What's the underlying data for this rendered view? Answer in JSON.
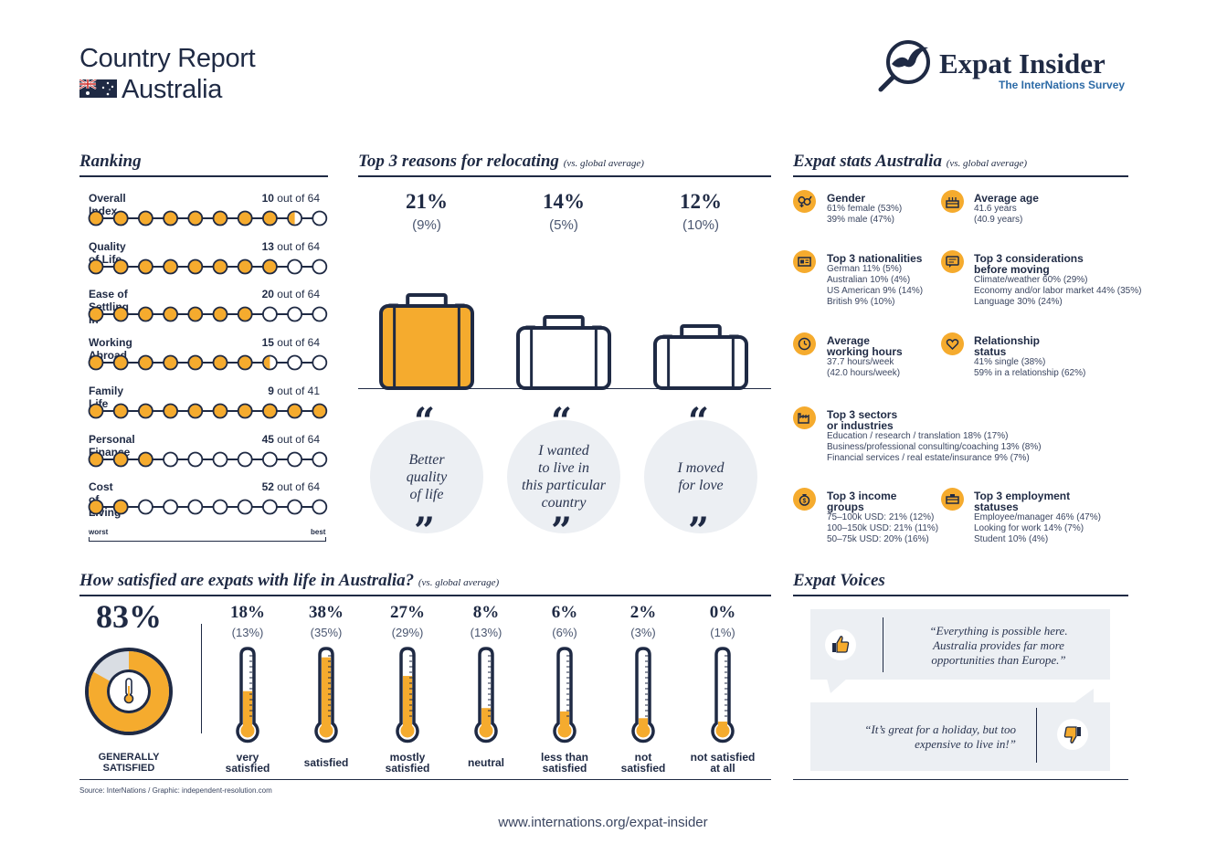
{
  "header": {
    "title": "Country Report",
    "country": "Australia",
    "logo_name": "Expat Insider",
    "logo_tagline": "The InterNations Survey"
  },
  "ranking": {
    "title": "Ranking",
    "scale_worst": "worst",
    "scale_best": "best",
    "of_label": "out of",
    "items": [
      {
        "label": "Overall Index",
        "rank": "10",
        "total": "64",
        "filled": 8.5
      },
      {
        "label": "Quality of Life",
        "rank": "13",
        "total": "64",
        "filled": 8
      },
      {
        "label": "Ease of Settling In",
        "rank": "20",
        "total": "64",
        "filled": 7
      },
      {
        "label": "Working Abroad",
        "rank": "15",
        "total": "64",
        "filled": 7.5
      },
      {
        "label": "Family Life",
        "rank": "9",
        "total": "41",
        "filled": 10
      },
      {
        "label": "Personal Finance",
        "rank": "45",
        "total": "64",
        "filled": 3
      },
      {
        "label": "Cost of Living",
        "rank": "52",
        "total": "64",
        "filled": 2
      }
    ]
  },
  "reasons": {
    "title": "Top 3 reasons for relocating",
    "subtitle": "(vs. global average)",
    "items": [
      {
        "pct": "21%",
        "global": "(9%)",
        "text": [
          "Better",
          "quality",
          "of life"
        ]
      },
      {
        "pct": "14%",
        "global": "(5%)",
        "text": [
          "I wanted",
          "to live in",
          "this particular",
          "country"
        ]
      },
      {
        "pct": "12%",
        "global": "(10%)",
        "text": [
          "I moved",
          "for love"
        ]
      }
    ]
  },
  "stats": {
    "title": "Expat stats Australia",
    "subtitle": "(vs. global average)",
    "gender": {
      "head": "Gender",
      "lines": [
        "61% female (53%)",
        "39% male (47%)"
      ],
      "icon": "gender-icon"
    },
    "age": {
      "head": "Average age",
      "lines": [
        "41.6 years",
        "(40.9 years)"
      ],
      "icon": "cake-icon"
    },
    "nationalities": {
      "head": "Top 3 nationalities",
      "lines": [
        "German 11% (5%)",
        "Australian 10% (4%)",
        "US American 9% (14%)",
        "British 9% (10%)"
      ],
      "icon": "passport-icon"
    },
    "considerations": {
      "head1": "Top 3 considerations",
      "head2": "before moving",
      "lines": [
        "Climate/weather 60% (29%)",
        "Economy and/or labor market 44% (35%)",
        "Language 30% (24%)"
      ],
      "icon": "chat-icon"
    },
    "hours": {
      "head1": "Average",
      "head2": "working hours",
      "lines": [
        "37.7 hours/week",
        "(42.0 hours/week)"
      ],
      "icon": "clock-icon"
    },
    "relationship": {
      "head1": "Relationship",
      "head2": "status",
      "lines": [
        "41% single (38%)",
        "59% in a relationship (62%)"
      ],
      "icon": "heart-icon"
    },
    "sectors": {
      "head1": "Top 3 sectors",
      "head2": "or industries",
      "lines": [
        "Education / research / translation 18% (17%)",
        "Business/professional consulting/coaching 13% (8%)",
        "Financial services / real estate/insurance 9% (7%)"
      ],
      "icon": "factory-icon"
    },
    "income": {
      "head1": "Top 3 income",
      "head2": "groups",
      "lines": [
        "75–100k USD: 21% (12%)",
        "100–150k USD: 21% (11%)",
        "50–75k USD: 20% (16%)"
      ],
      "icon": "money-bag-icon"
    },
    "employment": {
      "head1": "Top 3 employment",
      "head2": "statuses",
      "lines": [
        "Employee/manager 46% (47%)",
        "Looking for work 14% (7%)",
        "Student 10% (4%)"
      ],
      "icon": "desk-icon"
    }
  },
  "satisfaction": {
    "title": "How satisfied are expats with life in Australia?",
    "subtitle": "(vs. global average)",
    "overall_pct": "83%",
    "overall_value": 83,
    "overall_label": [
      "GENERALLY",
      "SATISFIED"
    ],
    "items": [
      {
        "pct": "18%",
        "global": "(13%)",
        "label": [
          "very",
          "satisfied"
        ],
        "value": 18
      },
      {
        "pct": "38%",
        "global": "(35%)",
        "label": [
          "satisfied"
        ],
        "value": 38
      },
      {
        "pct": "27%",
        "global": "(29%)",
        "label": [
          "mostly",
          "satisfied"
        ],
        "value": 27
      },
      {
        "pct": "8%",
        "global": "(13%)",
        "label": [
          "neutral"
        ],
        "value": 8
      },
      {
        "pct": "6%",
        "global": "(6%)",
        "label": [
          "less than",
          "satisfied"
        ],
        "value": 6
      },
      {
        "pct": "2%",
        "global": "(3%)",
        "label": [
          "not",
          "satisfied"
        ],
        "value": 2
      },
      {
        "pct": "0%",
        "global": "(1%)",
        "label": [
          "not satisfied",
          "at all"
        ],
        "value": 0
      }
    ]
  },
  "voices": {
    "title": "Expat Voices",
    "positive": [
      "“Everything is possible here.",
      "Australia provides far more",
      "opportunities than Europe.”"
    ],
    "negative": [
      "“It’s great for a holiday, but too",
      "expensive to live in!”"
    ]
  },
  "source": "Source: InterNations / Graphic: independent-resolution.com",
  "footer_url": "www.internations.org/expat-insider",
  "colors": {
    "accent": "#f5ab2e",
    "navy": "#1f2a44",
    "grey_bg": "#eceff3",
    "brand_blue": "#2c6aa6"
  }
}
